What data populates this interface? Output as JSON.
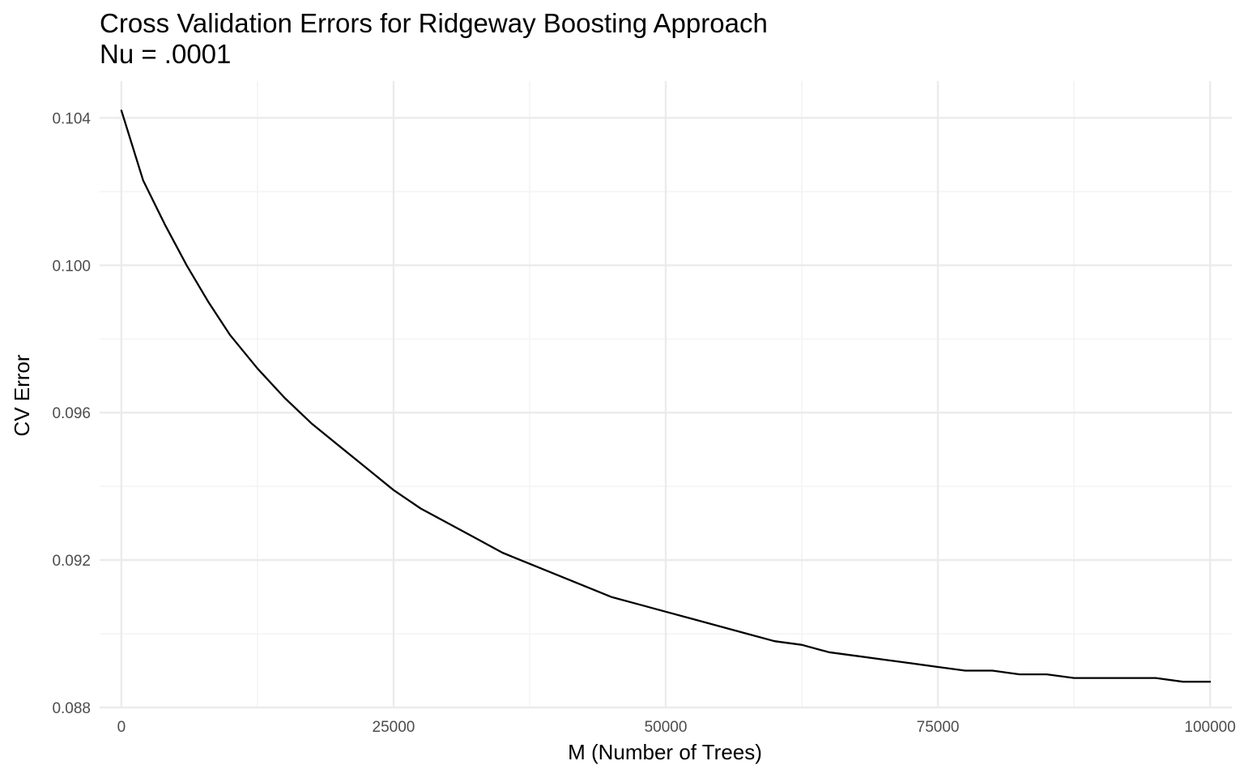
{
  "chart_data": {
    "type": "line",
    "title": "Cross Validation Errors for Ridgeway Boosting Approach",
    "subtitle": "Nu = .0001",
    "xlabel": "M (Number of Trees)",
    "ylabel": "CV Error",
    "xlim": [
      -2000,
      102000
    ],
    "ylim": [
      0.088,
      0.105
    ],
    "x_ticks": [
      0,
      25000,
      50000,
      75000,
      100000
    ],
    "x_tick_labels": [
      "0",
      "25000",
      "50000",
      "75000",
      "100000"
    ],
    "y_ticks": [
      0.088,
      0.092,
      0.096,
      0.1,
      0.104
    ],
    "y_tick_labels": [
      "0.088",
      "0.092",
      "0.096",
      "0.100",
      "0.104"
    ],
    "grid": true,
    "colors": {
      "line": "#000000",
      "grid_major": "#ebebeb",
      "grid_minor": "#f4f4f4",
      "tick_text": "#4d4d4d"
    },
    "series": [
      {
        "x": [
          0,
          2000,
          4000,
          6000,
          8000,
          10000,
          12500,
          15000,
          17500,
          20000,
          22500,
          25000,
          27500,
          30000,
          32500,
          35000,
          37500,
          40000,
          42500,
          45000,
          47500,
          50000,
          52500,
          55000,
          57500,
          60000,
          62500,
          65000,
          67500,
          70000,
          72500,
          75000,
          77500,
          80000,
          82500,
          85000,
          87500,
          90000,
          92500,
          95000,
          97500,
          100000
        ],
        "y": [
          0.1042,
          0.1023,
          0.1011,
          0.1,
          0.099,
          0.0981,
          0.0972,
          0.0964,
          0.0957,
          0.0951,
          0.0945,
          0.0939,
          0.0934,
          0.093,
          0.0926,
          0.0922,
          0.0919,
          0.0916,
          0.0913,
          0.091,
          0.0908,
          0.0906,
          0.0904,
          0.0902,
          0.09,
          0.0898,
          0.0897,
          0.0895,
          0.0894,
          0.0893,
          0.0892,
          0.0891,
          0.089,
          0.089,
          0.0889,
          0.0889,
          0.0888,
          0.0888,
          0.0888,
          0.0888,
          0.0887,
          0.0887
        ]
      }
    ]
  }
}
